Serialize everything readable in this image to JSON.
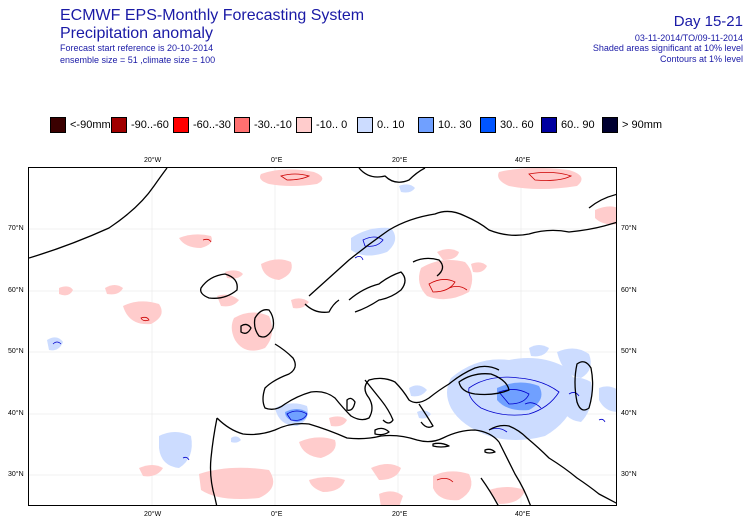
{
  "header": {
    "system_title": "ECMWF EPS-Monthly Forecasting System",
    "product_title": "Precipitation anomaly",
    "forecast_start": "Forecast start reference is 20-10-2014",
    "ensemble_info": "ensemble size = 51 ,climate size = 100",
    "day_range": "Day 15-21",
    "date_range": "03-11-2014/TO/09-11-2014",
    "shaded_note": "Shaded areas significant at 10% level",
    "contour_note": "Contours at 1% level"
  },
  "legend": [
    {
      "label": "<-90mm",
      "color": "#3a0000"
    },
    {
      "label": "-90..-60",
      "color": "#a00000"
    },
    {
      "label": "-60..-30",
      "color": "#ff0000"
    },
    {
      "label": "-30..-10",
      "color": "#ff7070"
    },
    {
      "label": "-10..  0",
      "color": "#ffcccc"
    },
    {
      "label": "0..  10",
      "color": "#ccdcff"
    },
    {
      "label": "10..  30",
      "color": "#70a0ff"
    },
    {
      "label": "30..  60",
      "color": "#0055ff"
    },
    {
      "label": "60..  90",
      "color": "#0000a0"
    },
    {
      "label": ">  90mm",
      "color": "#000030"
    }
  ],
  "axes": {
    "top_lon": [
      "20°W",
      "0°E",
      "20°E",
      "40°E"
    ],
    "bottom_lon": [
      "20°W",
      "0°E",
      "20°E",
      "40°E"
    ],
    "left_lat": [
      "70°N",
      "60°N",
      "50°N",
      "40°N",
      "30°N"
    ],
    "right_lat": [
      "70°N",
      "60°N",
      "50°N",
      "40°N",
      "30°N"
    ]
  }
}
